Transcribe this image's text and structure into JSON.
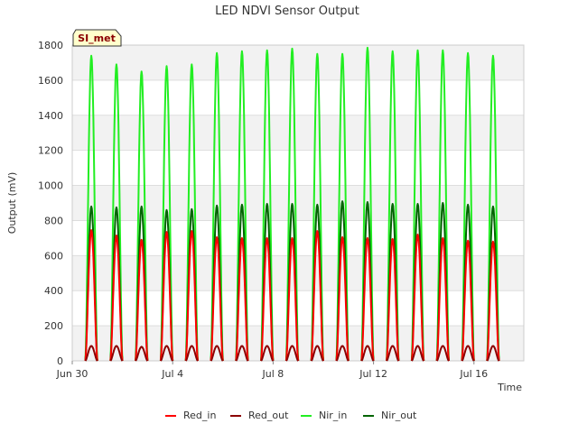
{
  "chart_data": {
    "type": "line",
    "title": "LED NDVI Sensor Output",
    "xlabel": "Time",
    "ylabel": "Output (mV)",
    "site_badge": "SI_met",
    "ylim": [
      0,
      1800
    ],
    "xlim": [
      0,
      18
    ],
    "x_ticks": [
      {
        "day": 0,
        "label": "Jun 30"
      },
      {
        "day": 4,
        "label": "Jul 4"
      },
      {
        "day": 8,
        "label": "Jul 8"
      },
      {
        "day": 12,
        "label": "Jul 12"
      },
      {
        "day": 16,
        "label": "Jul 16"
      }
    ],
    "y_ticks": [
      0,
      200,
      400,
      600,
      800,
      1000,
      1200,
      1400,
      1600,
      1800
    ],
    "legend_position": "bottom",
    "grid": true,
    "series": [
      {
        "name": "Red_in",
        "color": "#ff0000",
        "daily_peaks": [
          745,
          715,
          690,
          735,
          740,
          705,
          700,
          700,
          700,
          740,
          705,
          700,
          695,
          720,
          700,
          685,
          680
        ]
      },
      {
        "name": "Red_out",
        "color": "#8b0000",
        "daily_peaks": [
          85,
          85,
          80,
          85,
          85,
          85,
          85,
          85,
          85,
          85,
          85,
          85,
          85,
          85,
          85,
          85,
          85
        ]
      },
      {
        "name": "Nir_in",
        "color": "#22ee22",
        "daily_peaks": [
          1740,
          1690,
          1650,
          1680,
          1690,
          1755,
          1765,
          1770,
          1780,
          1750,
          1750,
          1785,
          1765,
          1770,
          1770,
          1755,
          1740
        ]
      },
      {
        "name": "Nir_out",
        "color": "#006400",
        "daily_peaks": [
          880,
          875,
          880,
          860,
          865,
          885,
          890,
          895,
          895,
          890,
          910,
          905,
          895,
          895,
          900,
          890,
          880
        ]
      }
    ],
    "day_peak_times": [
      0.76,
      1.76,
      2.76,
      3.76,
      4.76,
      5.76,
      6.76,
      7.76,
      8.76,
      9.76,
      10.76,
      11.76,
      12.76,
      13.76,
      14.76,
      15.76,
      16.76
    ]
  }
}
